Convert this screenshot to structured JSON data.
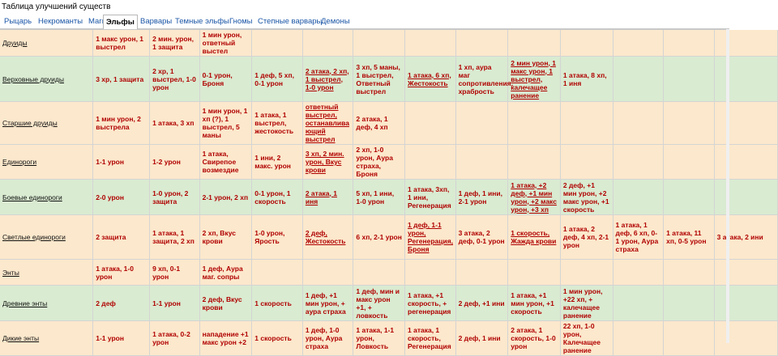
{
  "title": "Таблица улучшений существ",
  "tabs": [
    "Рыцарь",
    "Некроманты",
    "Маги",
    "Эльфы",
    "Варвары",
    "Темные эльфы",
    "Гномы",
    "Степные варвары",
    "Демоны"
  ],
  "active_tab": "Эльфы",
  "rows": [
    {
      "name": "Друиды",
      "color": "orange",
      "cells": [
        {
          "t": "1 макс урон, 1 выстрел"
        },
        {
          "t": "2 мин. урон, 1 защита"
        },
        {
          "t": "1 мин урон, ответный выстел"
        },
        {
          "t": ""
        },
        {
          "t": ""
        },
        {
          "t": ""
        },
        {
          "t": ""
        },
        {
          "t": ""
        },
        {
          "t": ""
        },
        {
          "t": ""
        },
        {
          "t": ""
        },
        {
          "t": ""
        },
        {
          "t": ""
        }
      ]
    },
    {
      "name": "Верховные друиды",
      "color": "green",
      "cells": [
        {
          "t": "3 хр, 1 защита"
        },
        {
          "t": "2 хр, 1 выстрел, 1-0 урон"
        },
        {
          "t": "0-1 урон, Броня"
        },
        {
          "t": "1 деф, 5 хп, 0-1 урон"
        },
        {
          "t": "2 атака, 2 хп, 1 выстрел, 1-0 урон",
          "u": true
        },
        {
          "t": "3 хп, 5 маны, 1 выстрел, Ответный выстрел"
        },
        {
          "t": "1 атака, 6 хп, Жестокость",
          "u": true
        },
        {
          "t": "1 хп, аура маг сопротивления, храбрость"
        },
        {
          "t": "2 мин урон, 1 макс урон, 1 выстрел, калечащее ранение",
          "u": true
        },
        {
          "t": "1 атака, 8 хп, 1 иня"
        },
        {
          "t": ""
        },
        {
          "t": ""
        },
        {
          "t": ""
        }
      ]
    },
    {
      "name": "Старшие друиды",
      "color": "orange",
      "cells": [
        {
          "t": "1 мин урон, 2 выстрела"
        },
        {
          "t": "1 атака, 3 хп"
        },
        {
          "t": "1 мин урон, 1 хп (?), 1 выстрел, 5 маны"
        },
        {
          "t": "1 атака, 1 выстрел, жестокость"
        },
        {
          "t": "ответный выстрел, останавлива ющий выстрел",
          "u": true
        },
        {
          "t": "2 атака, 1 деф, 4 хп"
        },
        {
          "t": ""
        },
        {
          "t": ""
        },
        {
          "t": ""
        },
        {
          "t": ""
        },
        {
          "t": ""
        },
        {
          "t": ""
        },
        {
          "t": ""
        }
      ]
    },
    {
      "name": "Единороги",
      "color": "orange",
      "cells": [
        {
          "t": "1-1 урон"
        },
        {
          "t": "1-2 урон"
        },
        {
          "t": "1 атака, Свирепое возмездие"
        },
        {
          "t": "1 ини, 2 макс. урон"
        },
        {
          "t": "3 хп, 2 мин. урон, Вкус крови",
          "u": true
        },
        {
          "t": "2 хп, 1-0 урон, Аура страха, Броня"
        },
        {
          "t": ""
        },
        {
          "t": ""
        },
        {
          "t": ""
        },
        {
          "t": ""
        },
        {
          "t": ""
        },
        {
          "t": ""
        },
        {
          "t": ""
        }
      ]
    },
    {
      "name": "Боевые единороги",
      "color": "green",
      "cells": [
        {
          "t": "2-0 урон"
        },
        {
          "t": "1-0 урон, 2 защита"
        },
        {
          "t": "2-1 урон, 2 хп"
        },
        {
          "t": "0-1 урон, 1 скорость"
        },
        {
          "t": "2 атака, 1 иня",
          "u": true
        },
        {
          "t": "5 хп, 1 ини, 1-0 урон"
        },
        {
          "t": "1 атака, 3хп, 1 ини, Регенерация"
        },
        {
          "t": "1 деф, 1 ини, 2-1 урон"
        },
        {
          "t": "1 атака, +2 деф, +1 мин урон, +2 макс урон, +3 хп",
          "u": true
        },
        {
          "t": "2 деф, +1 мин урон, +2 макс урон, +1 скорость"
        },
        {
          "t": ""
        },
        {
          "t": ""
        },
        {
          "t": ""
        }
      ]
    },
    {
      "name": "Светлые единороги",
      "color": "orange",
      "cells": [
        {
          "t": "2 защита"
        },
        {
          "t": "1 атака, 1 защита, 2 хп"
        },
        {
          "t": "2 хп, Вкус крови"
        },
        {
          "t": "1-0 урон, Ярость"
        },
        {
          "t": "2 деф, Жестокость",
          "u": true
        },
        {
          "t": "6 хп, 2-1 урон"
        },
        {
          "t": "1 деф, 1-1 урон, Регенерация, Броня",
          "u": true
        },
        {
          "t": "3 атака, 2 деф, 0-1 урон"
        },
        {
          "t": "1 скорость, Жажда крови",
          "u": true
        },
        {
          "t": "1 атака, 2 деф, 4 хп, 2-1 урон"
        },
        {
          "t": "1 атака, 1 деф, 6 хп, 0-1 урон, Аура страха"
        },
        {
          "t": "1 атака, 11 хп, 0-5 урон"
        },
        {
          "t": "3 атака, 2 ини"
        }
      ]
    },
    {
      "name": "Энты",
      "color": "orange",
      "cells": [
        {
          "t": "1 атака, 1-0 урон"
        },
        {
          "t": "9 хп, 0-1 урон"
        },
        {
          "t": "1 деф, Аура маг. сопры"
        },
        {
          "t": ""
        },
        {
          "t": ""
        },
        {
          "t": ""
        },
        {
          "t": ""
        },
        {
          "t": ""
        },
        {
          "t": ""
        },
        {
          "t": ""
        },
        {
          "t": ""
        },
        {
          "t": ""
        },
        {
          "t": ""
        }
      ]
    },
    {
      "name": "Древние энты",
      "color": "green",
      "cells": [
        {
          "t": "2 деф"
        },
        {
          "t": "1-1 урон"
        },
        {
          "t": "2 деф, Вкус крови"
        },
        {
          "t": "1 скорость"
        },
        {
          "t": "1 деф, +1 мин урон, + аура страха"
        },
        {
          "t": "1 деф, мин и макс урон +1, + ловкость"
        },
        {
          "t": "1 атака, +1 скорость, + регенерация"
        },
        {
          "t": "2 деф, +1 ини"
        },
        {
          "t": "1 атака, +1 мин урон, +1 скорость"
        },
        {
          "t": "1 мин урон, +22 хп, + калечащее ранение"
        },
        {
          "t": ""
        },
        {
          "t": ""
        },
        {
          "t": ""
        }
      ]
    },
    {
      "name": "Дикие энты",
      "color": "orange",
      "cells": [
        {
          "t": "1-1 урон"
        },
        {
          "t": "1 атака, 0-2 урон"
        },
        {
          "t": "нападение +1 макс урон +2"
        },
        {
          "t": "1 скорость"
        },
        {
          "t": "1 деф, 1-0 урон, Аура страха"
        },
        {
          "t": "1 атака, 1-1 урон, Ловкость"
        },
        {
          "t": "1 атака, 1 скорость, Регенерация"
        },
        {
          "t": "2 деф, 1 ини"
        },
        {
          "t": "2 атака, 1 скорость, 1-0 урон"
        },
        {
          "t": "22 хп, 1-0 урон, Калечащее ранение"
        },
        {
          "t": ""
        },
        {
          "t": ""
        },
        {
          "t": ""
        }
      ]
    }
  ]
}
